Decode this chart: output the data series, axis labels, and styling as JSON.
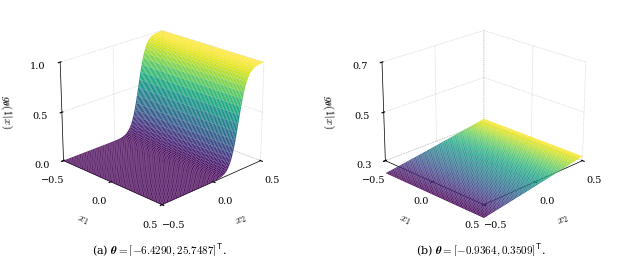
{
  "theta1": [
    -6.429,
    25.7487
  ],
  "theta2": [
    -0.9364,
    0.3509
  ],
  "x_range": [
    -0.5,
    0.5
  ],
  "n_points": 80,
  "cmap": "viridis",
  "label_a": "(a) $\\boldsymbol{\\theta} = [-6.4290, 25.7487]^{\\mathsf{T}}$.",
  "label_b": "(b) $\\boldsymbol{\\theta} = [-0.9364, 0.3509]^{\\mathsf{T}}$.",
  "zlabel": "$g_{\\boldsymbol{\\theta}}(1|x)$",
  "xlabel1": "$x_1$",
  "xlabel2": "$x_2$",
  "elev1": 22,
  "azim1": -135,
  "elev2": 22,
  "azim2": -135,
  "figsize": [
    6.4,
    2.56
  ],
  "dpi": 100
}
